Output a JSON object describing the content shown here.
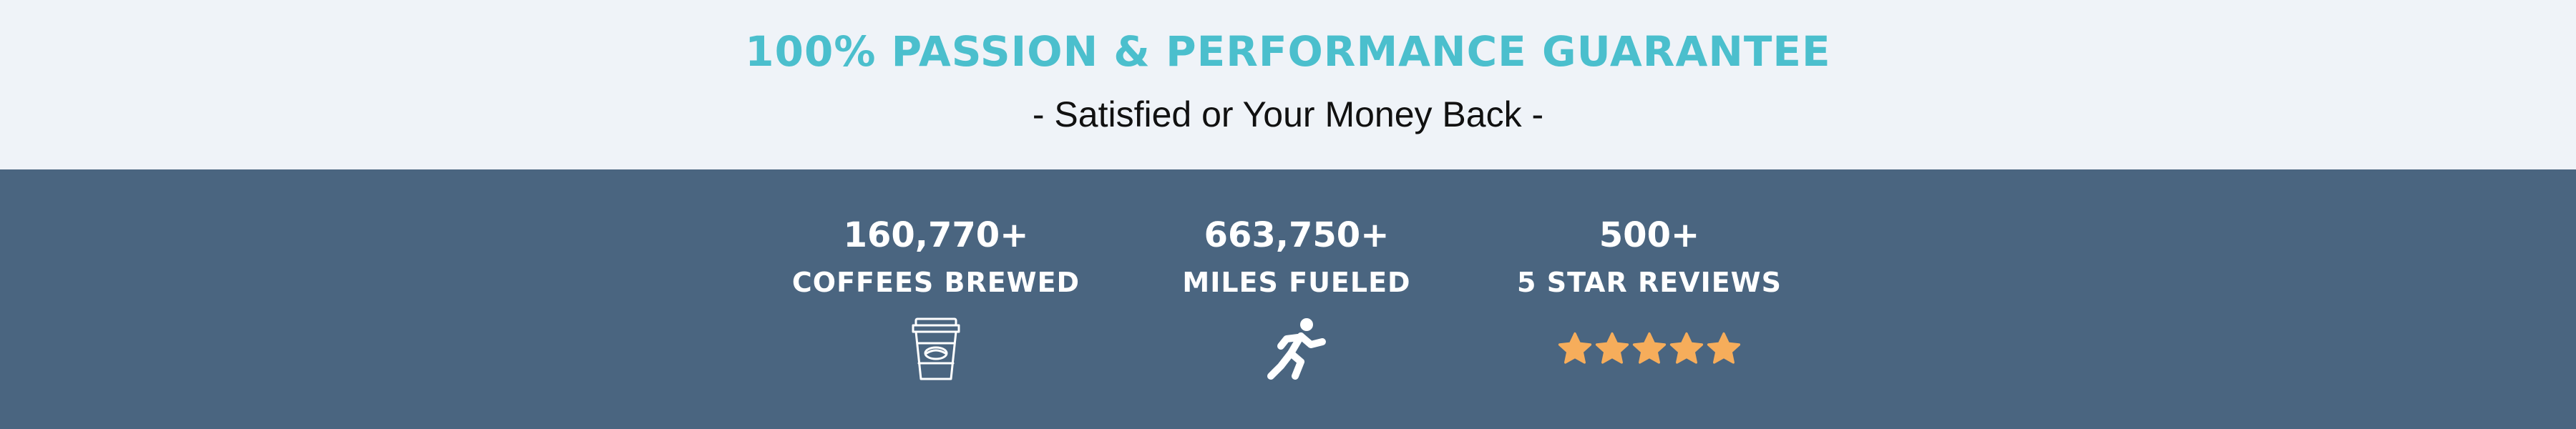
{
  "header": {
    "title": "100% PASSION & PERFORMANCE GUARANTEE",
    "subtitle": "- Satisfied or Your Money Back -"
  },
  "stats": [
    {
      "value": "160,770+",
      "label": "COFFEES BREWED",
      "icon": "coffee-cup-icon"
    },
    {
      "value": "663,750+",
      "label": "MILES FUELED",
      "icon": "runner-icon"
    },
    {
      "value": "500+",
      "label": "5 STAR REVIEWS",
      "icon": "star-icon",
      "rating": 5
    }
  ],
  "colors": {
    "accent": "#4bbfcd",
    "top_background": "#eff3f8",
    "bottom_background": "#4a6580",
    "star": "#f6ad5b",
    "text_light": "#ffffff",
    "text_dark": "#111111"
  }
}
